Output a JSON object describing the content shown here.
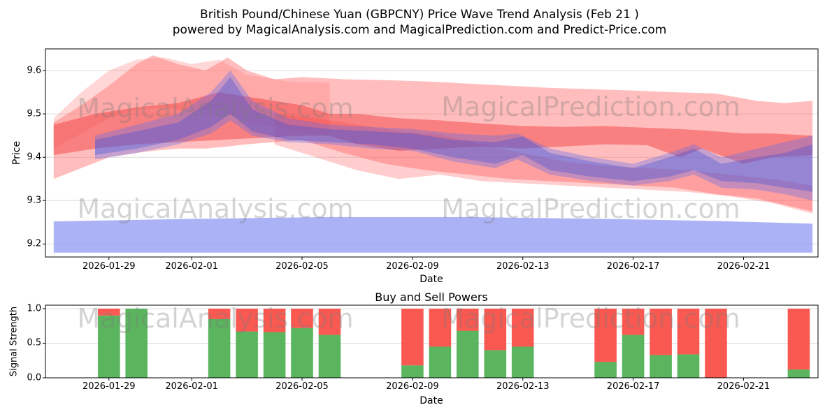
{
  "page": {
    "title_line1": "British Pound/Chinese Yuan (GBPCNY) Price Wave Trend Analysis (Feb 21 )",
    "title_line2": "powered by MagicalAnalysis.com and MagicalPrediction.com and Predict-Price.com"
  },
  "watermarks": {
    "left": "MagicalAnalysis.com",
    "right": "MagicalPrediction.com"
  },
  "colors": {
    "buy_green": "#4caf50",
    "sell_red": "#fa4b42",
    "grid": "#dcdcdc",
    "spine": "#000000",
    "watermark_gray": "#787878"
  },
  "chart_data": [
    {
      "type": "area",
      "title": "",
      "ylabel": "Price",
      "xlabel": "Date",
      "ylim": [
        9.17,
        9.65
      ],
      "xlim": [
        -0.3,
        27.7
      ],
      "grid": "horizontal",
      "yticks": [
        {
          "v": 9.2,
          "label": "9.2"
        },
        {
          "v": 9.3,
          "label": "9.3"
        },
        {
          "v": 9.4,
          "label": "9.4"
        },
        {
          "v": 9.5,
          "label": "9.5"
        },
        {
          "v": 9.6,
          "label": "9.6"
        }
      ],
      "xticks": [
        {
          "day": 2,
          "label": "2026-01-29"
        },
        {
          "day": 5,
          "label": "2026-02-01"
        },
        {
          "day": 9,
          "label": "2026-02-05"
        },
        {
          "day": 13,
          "label": "2026-02-09"
        },
        {
          "day": 17,
          "label": "2026-02-13"
        },
        {
          "day": 21,
          "label": "2026-02-17"
        },
        {
          "day": 25,
          "label": "2026-02-21"
        }
      ],
      "bands": [
        {
          "name": "support-zone-blue",
          "color": "#9ca6f5",
          "opacity": 0.85,
          "points": [
            [
              0,
              9.18,
              9.252
            ],
            [
              5,
              9.18,
              9.258
            ],
            [
              10,
              9.18,
              9.262
            ],
            [
              15,
              9.18,
              9.262
            ],
            [
              20,
              9.18,
              9.258
            ],
            [
              24,
              9.18,
              9.253
            ],
            [
              27.5,
              9.18,
              9.247
            ]
          ]
        },
        {
          "name": "resistance-outer-red",
          "color": "#ff5a5a",
          "opacity": 0.4,
          "points": [
            [
              0,
              9.35,
              9.48
            ],
            [
              1,
              9.375,
              9.52
            ],
            [
              2,
              9.4,
              9.565
            ],
            [
              3,
              9.41,
              9.615
            ],
            [
              3.6,
              9.415,
              9.635
            ],
            [
              4.5,
              9.42,
              9.615
            ],
            [
              5.5,
              9.42,
              9.6
            ],
            [
              6.3,
              9.425,
              9.63
            ],
            [
              7,
              9.43,
              9.6
            ],
            [
              8,
              9.435,
              9.58
            ],
            [
              9,
              9.44,
              9.585
            ],
            [
              10.5,
              9.41,
              9.58
            ],
            [
              12,
              9.385,
              9.578
            ],
            [
              13.5,
              9.37,
              9.575
            ],
            [
              15,
              9.36,
              9.57
            ],
            [
              16.5,
              9.35,
              9.565
            ],
            [
              18,
              9.345,
              9.56
            ],
            [
              19.5,
              9.34,
              9.557
            ],
            [
              21,
              9.335,
              9.554
            ],
            [
              22.5,
              9.33,
              9.55
            ],
            [
              24,
              9.315,
              9.547
            ],
            [
              25.5,
              9.305,
              9.53
            ],
            [
              26.5,
              9.29,
              9.525
            ],
            [
              27.5,
              9.275,
              9.53
            ]
          ]
        },
        {
          "name": "resistance-fan-left-red",
          "color": "#ff7a7a",
          "opacity": 0.3,
          "points": [
            [
              0,
              9.42,
              9.49
            ],
            [
              1,
              9.455,
              9.55
            ],
            [
              2,
              9.49,
              9.6
            ],
            [
              3,
              9.51,
              9.625
            ],
            [
              4,
              9.515,
              9.63
            ],
            [
              5,
              9.505,
              9.615
            ],
            [
              6,
              9.51,
              9.625
            ],
            [
              7,
              9.48,
              9.59
            ],
            [
              8.5,
              9.465,
              9.575
            ],
            [
              10,
              9.45,
              9.572
            ]
          ]
        },
        {
          "name": "resistance-lower-red",
          "color": "#ff5a5a",
          "opacity": 0.3,
          "points": [
            [
              8,
              9.43,
              9.5
            ],
            [
              9.5,
              9.4,
              9.49
            ],
            [
              11,
              9.37,
              9.475
            ],
            [
              12.5,
              9.35,
              9.46
            ],
            [
              14,
              9.36,
              9.452
            ],
            [
              15.5,
              9.345,
              9.43
            ],
            [
              17,
              9.34,
              9.41
            ],
            [
              18.5,
              9.335,
              9.39
            ],
            [
              20,
              9.33,
              9.38
            ],
            [
              21.5,
              9.325,
              9.375
            ],
            [
              23,
              9.32,
              9.37
            ],
            [
              24.5,
              9.31,
              9.36
            ],
            [
              26,
              9.295,
              9.35
            ],
            [
              27.5,
              9.27,
              9.335
            ]
          ]
        },
        {
          "name": "resistance-core-red",
          "color": "#f03535",
          "opacity": 0.45,
          "points": [
            [
              0,
              9.405,
              9.475
            ],
            [
              1.5,
              9.42,
              9.5
            ],
            [
              3,
              9.43,
              9.515
            ],
            [
              4.5,
              9.435,
              9.525
            ],
            [
              6,
              9.44,
              9.55
            ],
            [
              7.5,
              9.445,
              9.535
            ],
            [
              9,
              9.45,
              9.52
            ],
            [
              10,
              9.45,
              9.5
            ],
            [
              11,
              9.43,
              9.5
            ],
            [
              12.5,
              9.415,
              9.49
            ],
            [
              14,
              9.42,
              9.485
            ],
            [
              15.5,
              9.425,
              9.478
            ],
            [
              17,
              9.42,
              9.472
            ],
            [
              18.5,
              9.425,
              9.47
            ],
            [
              20,
              9.43,
              9.472
            ],
            [
              21.5,
              9.428,
              9.468
            ],
            [
              22.7,
              9.4,
              9.465
            ],
            [
              23.5,
              9.42,
              9.462
            ],
            [
              25,
              9.385,
              9.455
            ],
            [
              26,
              9.4,
              9.455
            ],
            [
              27.5,
              9.405,
              9.45
            ]
          ]
        },
        {
          "name": "trend-mid-blue",
          "color": "#5b6cf0",
          "opacity": 0.35,
          "points": [
            [
              1.5,
              9.395,
              9.45
            ],
            [
              3,
              9.41,
              9.475
            ],
            [
              4.5,
              9.43,
              9.5
            ],
            [
              5.7,
              9.455,
              9.55
            ],
            [
              6.4,
              9.485,
              9.6
            ],
            [
              7.2,
              9.45,
              9.53
            ],
            [
              8.5,
              9.435,
              9.49
            ],
            [
              10,
              9.43,
              9.475
            ],
            [
              11.5,
              9.42,
              9.47
            ],
            [
              13,
              9.415,
              9.465
            ],
            [
              14.5,
              9.39,
              9.455
            ],
            [
              16,
              9.375,
              9.45
            ],
            [
              16.8,
              9.395,
              9.455
            ],
            [
              18,
              9.36,
              9.42
            ],
            [
              19.5,
              9.345,
              9.4
            ],
            [
              21,
              9.335,
              9.385
            ],
            [
              22.3,
              9.345,
              9.41
            ],
            [
              23.2,
              9.36,
              9.43
            ],
            [
              24.2,
              9.33,
              9.4
            ],
            [
              25.5,
              9.325,
              9.42
            ],
            [
              26.5,
              9.315,
              9.435
            ],
            [
              27.5,
              9.3,
              9.45
            ]
          ]
        },
        {
          "name": "trend-core-blue",
          "color": "#3d4fd6",
          "opacity": 0.35,
          "points": [
            [
              1.5,
              9.405,
              9.44
            ],
            [
              3,
              9.42,
              9.46
            ],
            [
              4.5,
              9.44,
              9.48
            ],
            [
              5.7,
              9.47,
              9.53
            ],
            [
              6.4,
              9.5,
              9.585
            ],
            [
              7.2,
              9.46,
              9.51
            ],
            [
              8.5,
              9.44,
              9.475
            ],
            [
              10,
              9.435,
              9.465
            ],
            [
              11.5,
              9.43,
              9.46
            ],
            [
              13,
              9.42,
              9.455
            ],
            [
              14.5,
              9.4,
              9.44
            ],
            [
              16,
              9.385,
              9.435
            ],
            [
              17,
              9.405,
              9.448
            ],
            [
              18,
              9.37,
              9.41
            ],
            [
              19.5,
              9.355,
              9.39
            ],
            [
              21,
              9.345,
              9.375
            ],
            [
              22.3,
              9.355,
              9.4
            ],
            [
              23.2,
              9.37,
              9.42
            ],
            [
              24.2,
              9.345,
              9.385
            ],
            [
              25.5,
              9.34,
              9.4
            ],
            [
              26.5,
              9.33,
              9.41
            ],
            [
              27.5,
              9.32,
              9.43
            ]
          ]
        }
      ]
    },
    {
      "type": "bar",
      "title": "Buy and Sell Powers",
      "ylabel": "Signal Strength",
      "xlabel": "Date",
      "ylim": [
        0,
        1.05
      ],
      "xlim": [
        -0.3,
        27.7
      ],
      "bar_width_days": 0.8,
      "yticks": [
        {
          "v": 0,
          "label": "0.0"
        },
        {
          "v": 0.5,
          "label": "0.5"
        },
        {
          "v": 1,
          "label": "1.0"
        }
      ],
      "xticks": [
        {
          "day": 2,
          "label": "2026-01-29"
        },
        {
          "day": 5,
          "label": "2026-02-01"
        },
        {
          "day": 9,
          "label": "2026-02-05"
        },
        {
          "day": 13,
          "label": "2026-02-09"
        },
        {
          "day": 17,
          "label": "2026-02-13"
        },
        {
          "day": 21,
          "label": "2026-02-17"
        },
        {
          "day": 25,
          "label": "2026-02-21"
        }
      ],
      "series": [
        {
          "name": "Buy power",
          "color_key": "buy_green"
        },
        {
          "name": "Sell power",
          "color_key": "sell_red"
        }
      ],
      "bars": [
        {
          "date": "2026-01-29",
          "day": 2,
          "buy": 0.9,
          "sell": 0.1
        },
        {
          "date": "2026-01-30",
          "day": 3,
          "buy": 1.0,
          "sell": 0.0
        },
        {
          "date": "2026-02-02",
          "day": 6,
          "buy": 0.85,
          "sell": 0.15
        },
        {
          "date": "2026-02-03",
          "day": 7,
          "buy": 0.67,
          "sell": 0.33
        },
        {
          "date": "2026-02-04",
          "day": 8,
          "buy": 0.66,
          "sell": 0.34
        },
        {
          "date": "2026-02-05",
          "day": 9,
          "buy": 0.72,
          "sell": 0.28
        },
        {
          "date": "2026-02-06",
          "day": 10,
          "buy": 0.62,
          "sell": 0.38
        },
        {
          "date": "2026-02-09",
          "day": 13,
          "buy": 0.18,
          "sell": 0.82
        },
        {
          "date": "2026-02-10",
          "day": 14,
          "buy": 0.45,
          "sell": 0.55
        },
        {
          "date": "2026-02-11",
          "day": 15,
          "buy": 0.68,
          "sell": 0.32
        },
        {
          "date": "2026-02-12",
          "day": 16,
          "buy": 0.4,
          "sell": 0.6
        },
        {
          "date": "2026-02-13",
          "day": 17,
          "buy": 0.45,
          "sell": 0.55
        },
        {
          "date": "2026-02-16",
          "day": 20,
          "buy": 0.23,
          "sell": 0.77
        },
        {
          "date": "2026-02-17",
          "day": 21,
          "buy": 0.62,
          "sell": 0.38
        },
        {
          "date": "2026-02-18",
          "day": 22,
          "buy": 0.33,
          "sell": 0.67
        },
        {
          "date": "2026-02-19",
          "day": 23,
          "buy": 0.34,
          "sell": 0.66
        },
        {
          "date": "2026-02-20",
          "day": 24,
          "buy": 0.0,
          "sell": 1.0
        },
        {
          "date": "2026-02-23",
          "day": 27,
          "buy": 0.12,
          "sell": 0.88
        }
      ]
    }
  ]
}
